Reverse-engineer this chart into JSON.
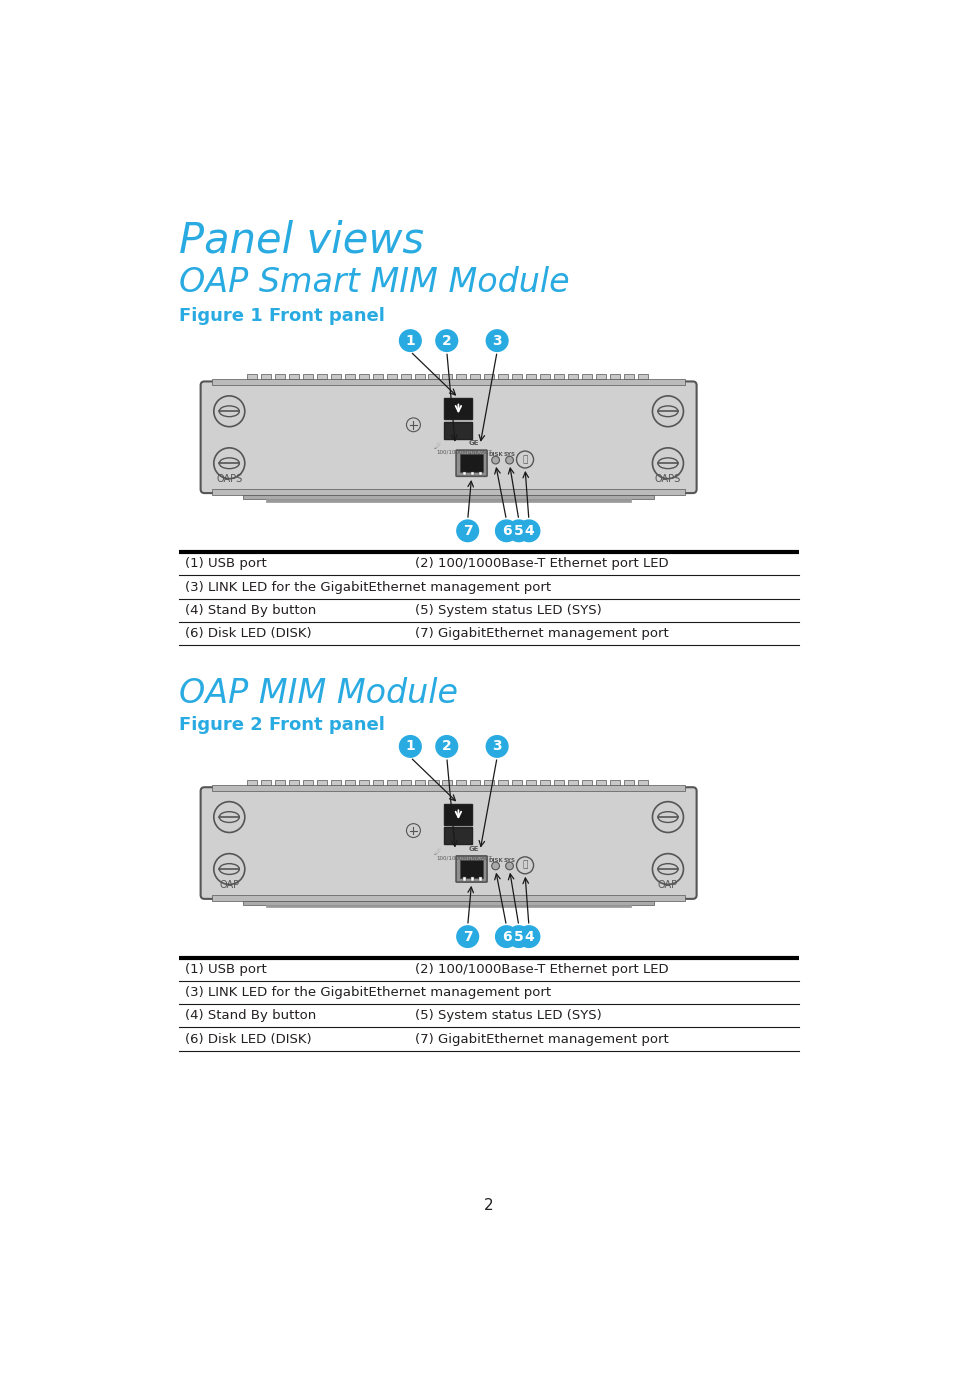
{
  "bg_color": "#ffffff",
  "title_color": "#29abe2",
  "subtitle_color": "#29abe2",
  "bold_subtitle_color": "#29abe2",
  "text_color": "#231f20",
  "line_color": "#1a1a1a",
  "circle_color": "#29abe2",
  "panel_views_text": "Panel views",
  "section1_title": "OAP Smart MIM Module",
  "section1_subtitle": "Figure 1 Front panel",
  "section2_title": "OAP MIM Module",
  "section2_subtitle": "Figure 2 Front panel",
  "table1_rows": [
    [
      "(1) USB port",
      "(2) 100/1000Base-T Ethernet port LED"
    ],
    [
      "(3) LINK LED for the GigabitEthernet management port",
      ""
    ],
    [
      "(4) Stand By button",
      "(5) System status LED (SYS)"
    ],
    [
      "(6) Disk LED (DISK)",
      "(7) GigabitEthernet management port"
    ]
  ],
  "table2_rows": [
    [
      "(1) USB port",
      "(2) 100/1000Base-T Ethernet port LED"
    ],
    [
      "(3) LINK LED for the GigabitEthernet management port",
      ""
    ],
    [
      "(4) Stand By button",
      "(5) System status LED (SYS)"
    ],
    [
      "(6) Disk LED (DISK)",
      "(7) GigabitEthernet management port"
    ]
  ],
  "page_number": "2",
  "panel_bg": "#d0d0d0",
  "panel_border": "#555555",
  "oaps_label1": "OAPS",
  "oaps_label2": "OAPS",
  "oap_label1": "OAP",
  "oap_label2": "OAP"
}
